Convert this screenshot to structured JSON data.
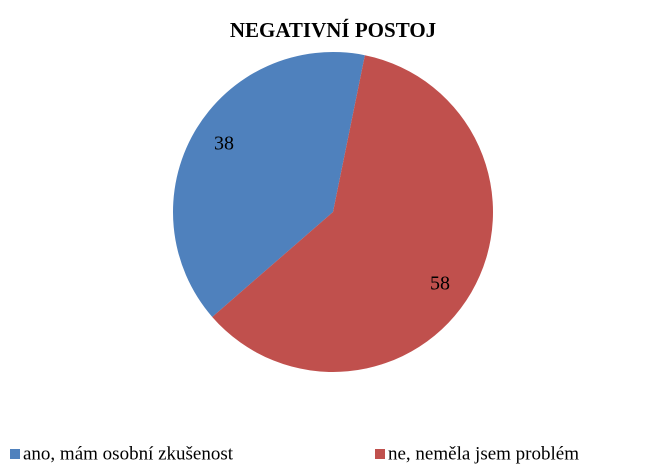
{
  "chart_data": {
    "type": "pie",
    "title": "NEGATIVNÍ POSTOJ",
    "categories": [
      "ano, mám osobní zkušenost",
      "ne, neměla jsem problém"
    ],
    "values": [
      38,
      58
    ],
    "colors": [
      "#4f81bd",
      "#c0504d"
    ],
    "legend": "bottom"
  }
}
